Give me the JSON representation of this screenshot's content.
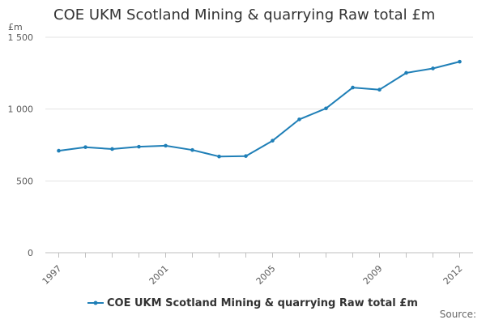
{
  "chart_data": {
    "type": "line",
    "title": "COE UKM Scotland Mining & quarrying Raw total £m",
    "ylabel": "£m",
    "xlabel": "",
    "x": [
      1997,
      1998,
      1999,
      2000,
      2001,
      2002,
      2003,
      2004,
      2005,
      2006,
      2007,
      2008,
      2009,
      2010,
      2011,
      2012
    ],
    "x_tick_labels": [
      "1997",
      "2001",
      "2005",
      "2009",
      "2012"
    ],
    "x_tick_values": [
      1997,
      2001,
      2005,
      2009,
      2012
    ],
    "y_tick_values": [
      0,
      500,
      1000,
      1500
    ],
    "y_tick_labels": [
      "0",
      "500",
      "1 000",
      "1 500"
    ],
    "ylim": [
      0,
      1500
    ],
    "series": [
      {
        "name": "COE UKM Scotland Mining & quarrying Raw total £m",
        "color": "#1f7fb7",
        "values": [
          710,
          735,
          722,
          738,
          745,
          715,
          670,
          673,
          780,
          928,
          1005,
          1150,
          1135,
          1252,
          1283,
          1330
        ]
      }
    ],
    "grid": true,
    "legend_position": "bottom-left",
    "source_label": "Source:"
  }
}
